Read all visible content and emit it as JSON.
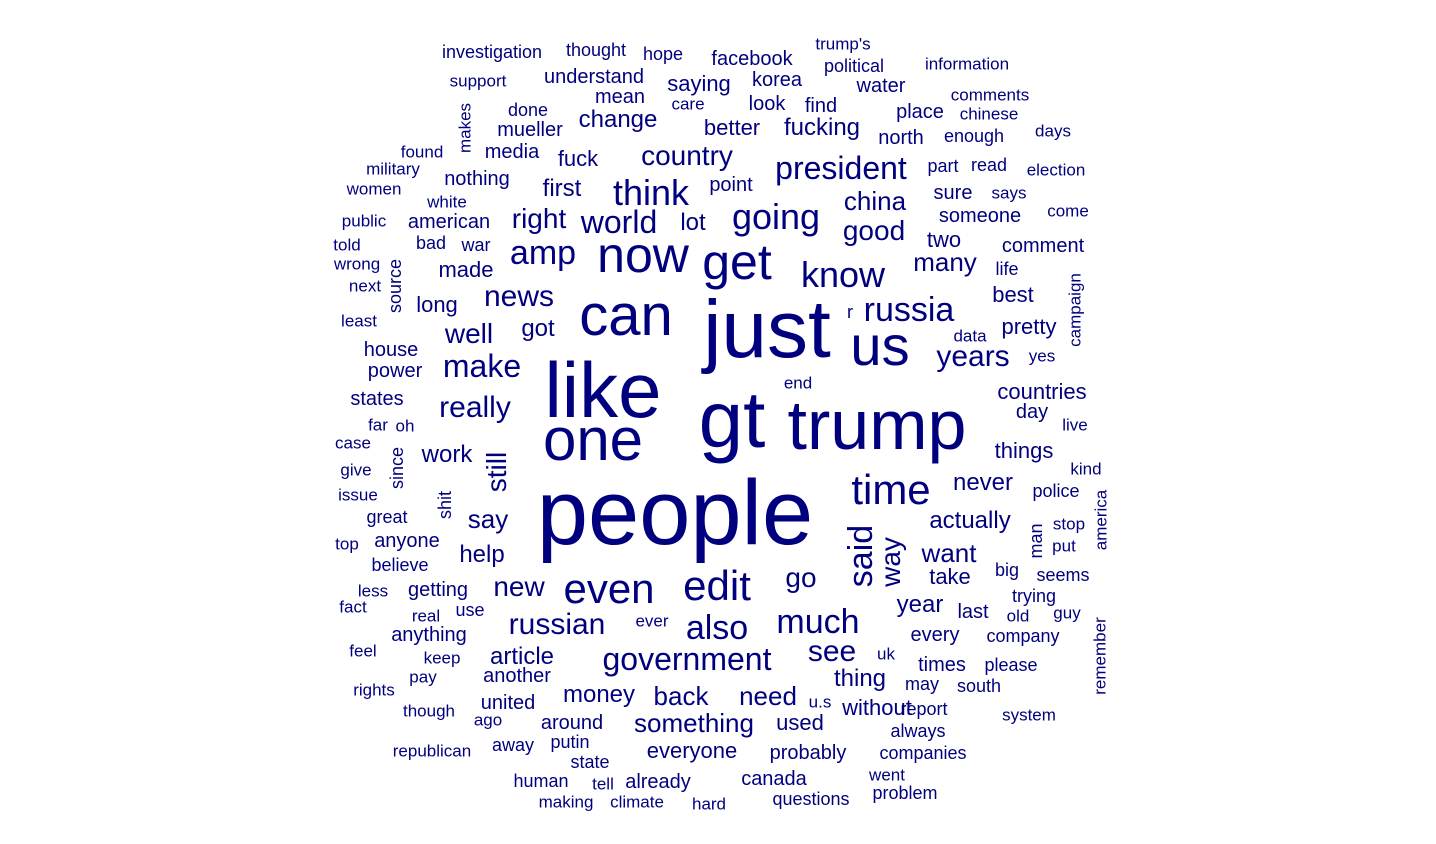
{
  "cloud": {
    "color": "#00007f",
    "words": [
      {
        "text": "people",
        "freq": 100
      },
      {
        "text": "just",
        "freq": 92
      },
      {
        "text": "gt",
        "freq": 90
      },
      {
        "text": "like",
        "freq": 88
      },
      {
        "text": "trump",
        "freq": 80
      },
      {
        "text": "one",
        "freq": 66
      },
      {
        "text": "can",
        "freq": 64
      },
      {
        "text": "us",
        "freq": 60
      },
      {
        "text": "now",
        "freq": 54
      },
      {
        "text": "get",
        "freq": 54
      },
      {
        "text": "even",
        "freq": 46
      },
      {
        "text": "edit",
        "freq": 46
      },
      {
        "text": "time",
        "freq": 46
      },
      {
        "text": "think",
        "freq": 40
      },
      {
        "text": "know",
        "freq": 40
      },
      {
        "text": "going",
        "freq": 38
      },
      {
        "text": "said",
        "freq": 38
      },
      {
        "text": "russia",
        "freq": 36
      },
      {
        "text": "much",
        "freq": 36
      },
      {
        "text": "also",
        "freq": 36
      },
      {
        "text": "president",
        "freq": 34
      },
      {
        "text": "government",
        "freq": 34
      },
      {
        "text": "amp",
        "freq": 34
      },
      {
        "text": "world",
        "freq": 32
      },
      {
        "text": "make",
        "freq": 32
      },
      {
        "text": "really",
        "freq": 32
      },
      {
        "text": "news",
        "freq": 32
      },
      {
        "text": "years",
        "freq": 32
      },
      {
        "text": "way",
        "freq": 32
      },
      {
        "text": "russian",
        "freq": 32
      },
      {
        "text": "see",
        "freq": 32
      },
      {
        "text": "good",
        "freq": 30
      },
      {
        "text": "right",
        "freq": 30
      },
      {
        "text": "well",
        "freq": 30
      },
      {
        "text": "new",
        "freq": 30
      },
      {
        "text": "go",
        "freq": 30
      },
      {
        "text": "country",
        "freq": 28
      },
      {
        "text": "want",
        "freq": 28
      },
      {
        "text": "still",
        "freq": 28
      },
      {
        "text": "many",
        "freq": 28
      },
      {
        "text": "china",
        "freq": 28
      },
      {
        "text": "something",
        "freq": 26
      },
      {
        "text": "back",
        "freq": 26
      },
      {
        "text": "need",
        "freq": 26
      },
      {
        "text": "first",
        "freq": 26
      },
      {
        "text": "say",
        "freq": 26
      },
      {
        "text": "actually",
        "freq": 26
      },
      {
        "text": "thing",
        "freq": 26
      },
      {
        "text": "lot",
        "freq": 26
      },
      {
        "text": "money",
        "freq": 24
      },
      {
        "text": "never",
        "freq": 24
      },
      {
        "text": "got",
        "freq": 24
      },
      {
        "text": "article",
        "freq": 24
      },
      {
        "text": "help",
        "freq": 24
      },
      {
        "text": "work",
        "freq": 24
      },
      {
        "text": "year",
        "freq": 24
      },
      {
        "text": "change",
        "freq": 24
      },
      {
        "text": "fucking",
        "freq": 24
      },
      {
        "text": "everyone",
        "freq": 22
      },
      {
        "text": "used",
        "freq": 22
      },
      {
        "text": "things",
        "freq": 22
      },
      {
        "text": "made",
        "freq": 22
      },
      {
        "text": "long",
        "freq": 22
      },
      {
        "text": "two",
        "freq": 22
      },
      {
        "text": "take",
        "freq": 22
      },
      {
        "text": "countries",
        "freq": 22
      },
      {
        "text": "best",
        "freq": 22
      },
      {
        "text": "pretty",
        "freq": 22
      },
      {
        "text": "without",
        "freq": 22
      },
      {
        "text": "fuck",
        "freq": 22
      },
      {
        "text": "saying",
        "freq": 22
      },
      {
        "text": "better",
        "freq": 22
      },
      {
        "text": "point",
        "freq": 20
      },
      {
        "text": "mean",
        "freq": 20
      },
      {
        "text": "look",
        "freq": 20
      },
      {
        "text": "nothing",
        "freq": 20
      },
      {
        "text": "someone",
        "freq": 20
      },
      {
        "text": "day",
        "freq": 20
      },
      {
        "text": "every",
        "freq": 20
      },
      {
        "text": "facebook",
        "freq": 20
      },
      {
        "text": "probably",
        "freq": 20
      },
      {
        "text": "around",
        "freq": 20
      },
      {
        "text": "getting",
        "freq": 20
      },
      {
        "text": "american",
        "freq": 20
      },
      {
        "text": "media",
        "freq": 20
      },
      {
        "text": "last",
        "freq": 20
      },
      {
        "text": "times",
        "freq": 20
      },
      {
        "text": "korea",
        "freq": 20
      },
      {
        "text": "understand",
        "freq": 20
      },
      {
        "text": "comment",
        "freq": 20
      },
      {
        "text": "sure",
        "freq": 20
      },
      {
        "text": "find",
        "freq": 20
      },
      {
        "text": "house",
        "freq": 20
      },
      {
        "text": "water",
        "freq": 20
      },
      {
        "text": "mueller",
        "freq": 20
      },
      {
        "text": "place",
        "freq": 20
      },
      {
        "text": "north",
        "freq": 20
      },
      {
        "text": "states",
        "freq": 20
      },
      {
        "text": "power",
        "freq": 20
      },
      {
        "text": "another",
        "freq": 20
      },
      {
        "text": "already",
        "freq": 20
      },
      {
        "text": "united",
        "freq": 20
      },
      {
        "text": "canada",
        "freq": 20
      },
      {
        "text": "anyone",
        "freq": 20
      },
      {
        "text": "anything",
        "freq": 20
      },
      {
        "text": "thought",
        "freq": 18
      },
      {
        "text": "political",
        "freq": 18
      },
      {
        "text": "done",
        "freq": 18
      },
      {
        "text": "bad",
        "freq": 18
      },
      {
        "text": "war",
        "freq": 18
      },
      {
        "text": "part",
        "freq": 18
      },
      {
        "text": "read",
        "freq": 18
      },
      {
        "text": "enough",
        "freq": 18
      },
      {
        "text": "hope",
        "freq": 18
      },
      {
        "text": "may",
        "freq": 18
      },
      {
        "text": "big",
        "freq": 18
      },
      {
        "text": "company",
        "freq": 18
      },
      {
        "text": "trying",
        "freq": 18
      },
      {
        "text": "shit",
        "freq": 18
      },
      {
        "text": "source",
        "freq": 18
      },
      {
        "text": "since",
        "freq": 18
      },
      {
        "text": "great",
        "freq": 18
      },
      {
        "text": "believe",
        "freq": 18
      },
      {
        "text": "use",
        "freq": 18
      },
      {
        "text": "south",
        "freq": 18
      },
      {
        "text": "report",
        "freq": 18
      },
      {
        "text": "companies",
        "freq": 18
      },
      {
        "text": "always",
        "freq": 18
      },
      {
        "text": "police",
        "freq": 18
      },
      {
        "text": "please",
        "freq": 18
      },
      {
        "text": "man",
        "freq": 18
      },
      {
        "text": "seems",
        "freq": 18
      },
      {
        "text": "life",
        "freq": 18
      },
      {
        "text": "questions",
        "freq": 18
      },
      {
        "text": "problem",
        "freq": 18
      },
      {
        "text": "putin",
        "freq": 18
      },
      {
        "text": "state",
        "freq": 18
      },
      {
        "text": "human",
        "freq": 18
      },
      {
        "text": "away",
        "freq": 18
      },
      {
        "text": "investigation",
        "freq": 18
      },
      {
        "text": "information",
        "freq": 17
      },
      {
        "text": "trump's",
        "freq": 17
      },
      {
        "text": "support",
        "freq": 17
      },
      {
        "text": "care",
        "freq": 17
      },
      {
        "text": "makes",
        "freq": 17
      },
      {
        "text": "comments",
        "freq": 17
      },
      {
        "text": "chinese",
        "freq": 17
      },
      {
        "text": "found",
        "freq": 17
      },
      {
        "text": "military",
        "freq": 17
      },
      {
        "text": "white",
        "freq": 17
      },
      {
        "text": "women",
        "freq": 17
      },
      {
        "text": "public",
        "freq": 17
      },
      {
        "text": "told",
        "freq": 17
      },
      {
        "text": "wrong",
        "freq": 17
      },
      {
        "text": "next",
        "freq": 17
      },
      {
        "text": "least",
        "freq": 17
      },
      {
        "text": "days",
        "freq": 17
      },
      {
        "text": "election",
        "freq": 17
      },
      {
        "text": "says",
        "freq": 17
      },
      {
        "text": "come",
        "freq": 17
      },
      {
        "text": "campaign",
        "freq": 17
      },
      {
        "text": "data",
        "freq": 17
      },
      {
        "text": "yes",
        "freq": 17
      },
      {
        "text": "far",
        "freq": 17
      },
      {
        "text": "oh",
        "freq": 17
      },
      {
        "text": "case",
        "freq": 17
      },
      {
        "text": "give",
        "freq": 17
      },
      {
        "text": "issue",
        "freq": 17
      },
      {
        "text": "top",
        "freq": 17
      },
      {
        "text": "less",
        "freq": 17
      },
      {
        "text": "fact",
        "freq": 17
      },
      {
        "text": "real",
        "freq": 17
      },
      {
        "text": "feel",
        "freq": 17
      },
      {
        "text": "keep",
        "freq": 17
      },
      {
        "text": "pay",
        "freq": 17
      },
      {
        "text": "rights",
        "freq": 17
      },
      {
        "text": "though",
        "freq": 17
      },
      {
        "text": "ago",
        "freq": 17
      },
      {
        "text": "republican",
        "freq": 17
      },
      {
        "text": "tell",
        "freq": 17
      },
      {
        "text": "making",
        "freq": 17
      },
      {
        "text": "climate",
        "freq": 17
      },
      {
        "text": "hard",
        "freq": 17
      },
      {
        "text": "went",
        "freq": 17
      },
      {
        "text": "system",
        "freq": 17
      },
      {
        "text": "remember",
        "freq": 17
      },
      {
        "text": "america",
        "freq": 17
      },
      {
        "text": "kind",
        "freq": 17
      },
      {
        "text": "live",
        "freq": 17
      },
      {
        "text": "stop",
        "freq": 17
      },
      {
        "text": "put",
        "freq": 17
      },
      {
        "text": "guy",
        "freq": 17
      },
      {
        "text": "old",
        "freq": 17
      },
      {
        "text": "ever",
        "freq": 17
      },
      {
        "text": "uk",
        "freq": 17
      },
      {
        "text": "u.s",
        "freq": 17
      },
      {
        "text": "end",
        "freq": 17
      },
      {
        "text": "r",
        "freq": 17
      }
    ]
  }
}
